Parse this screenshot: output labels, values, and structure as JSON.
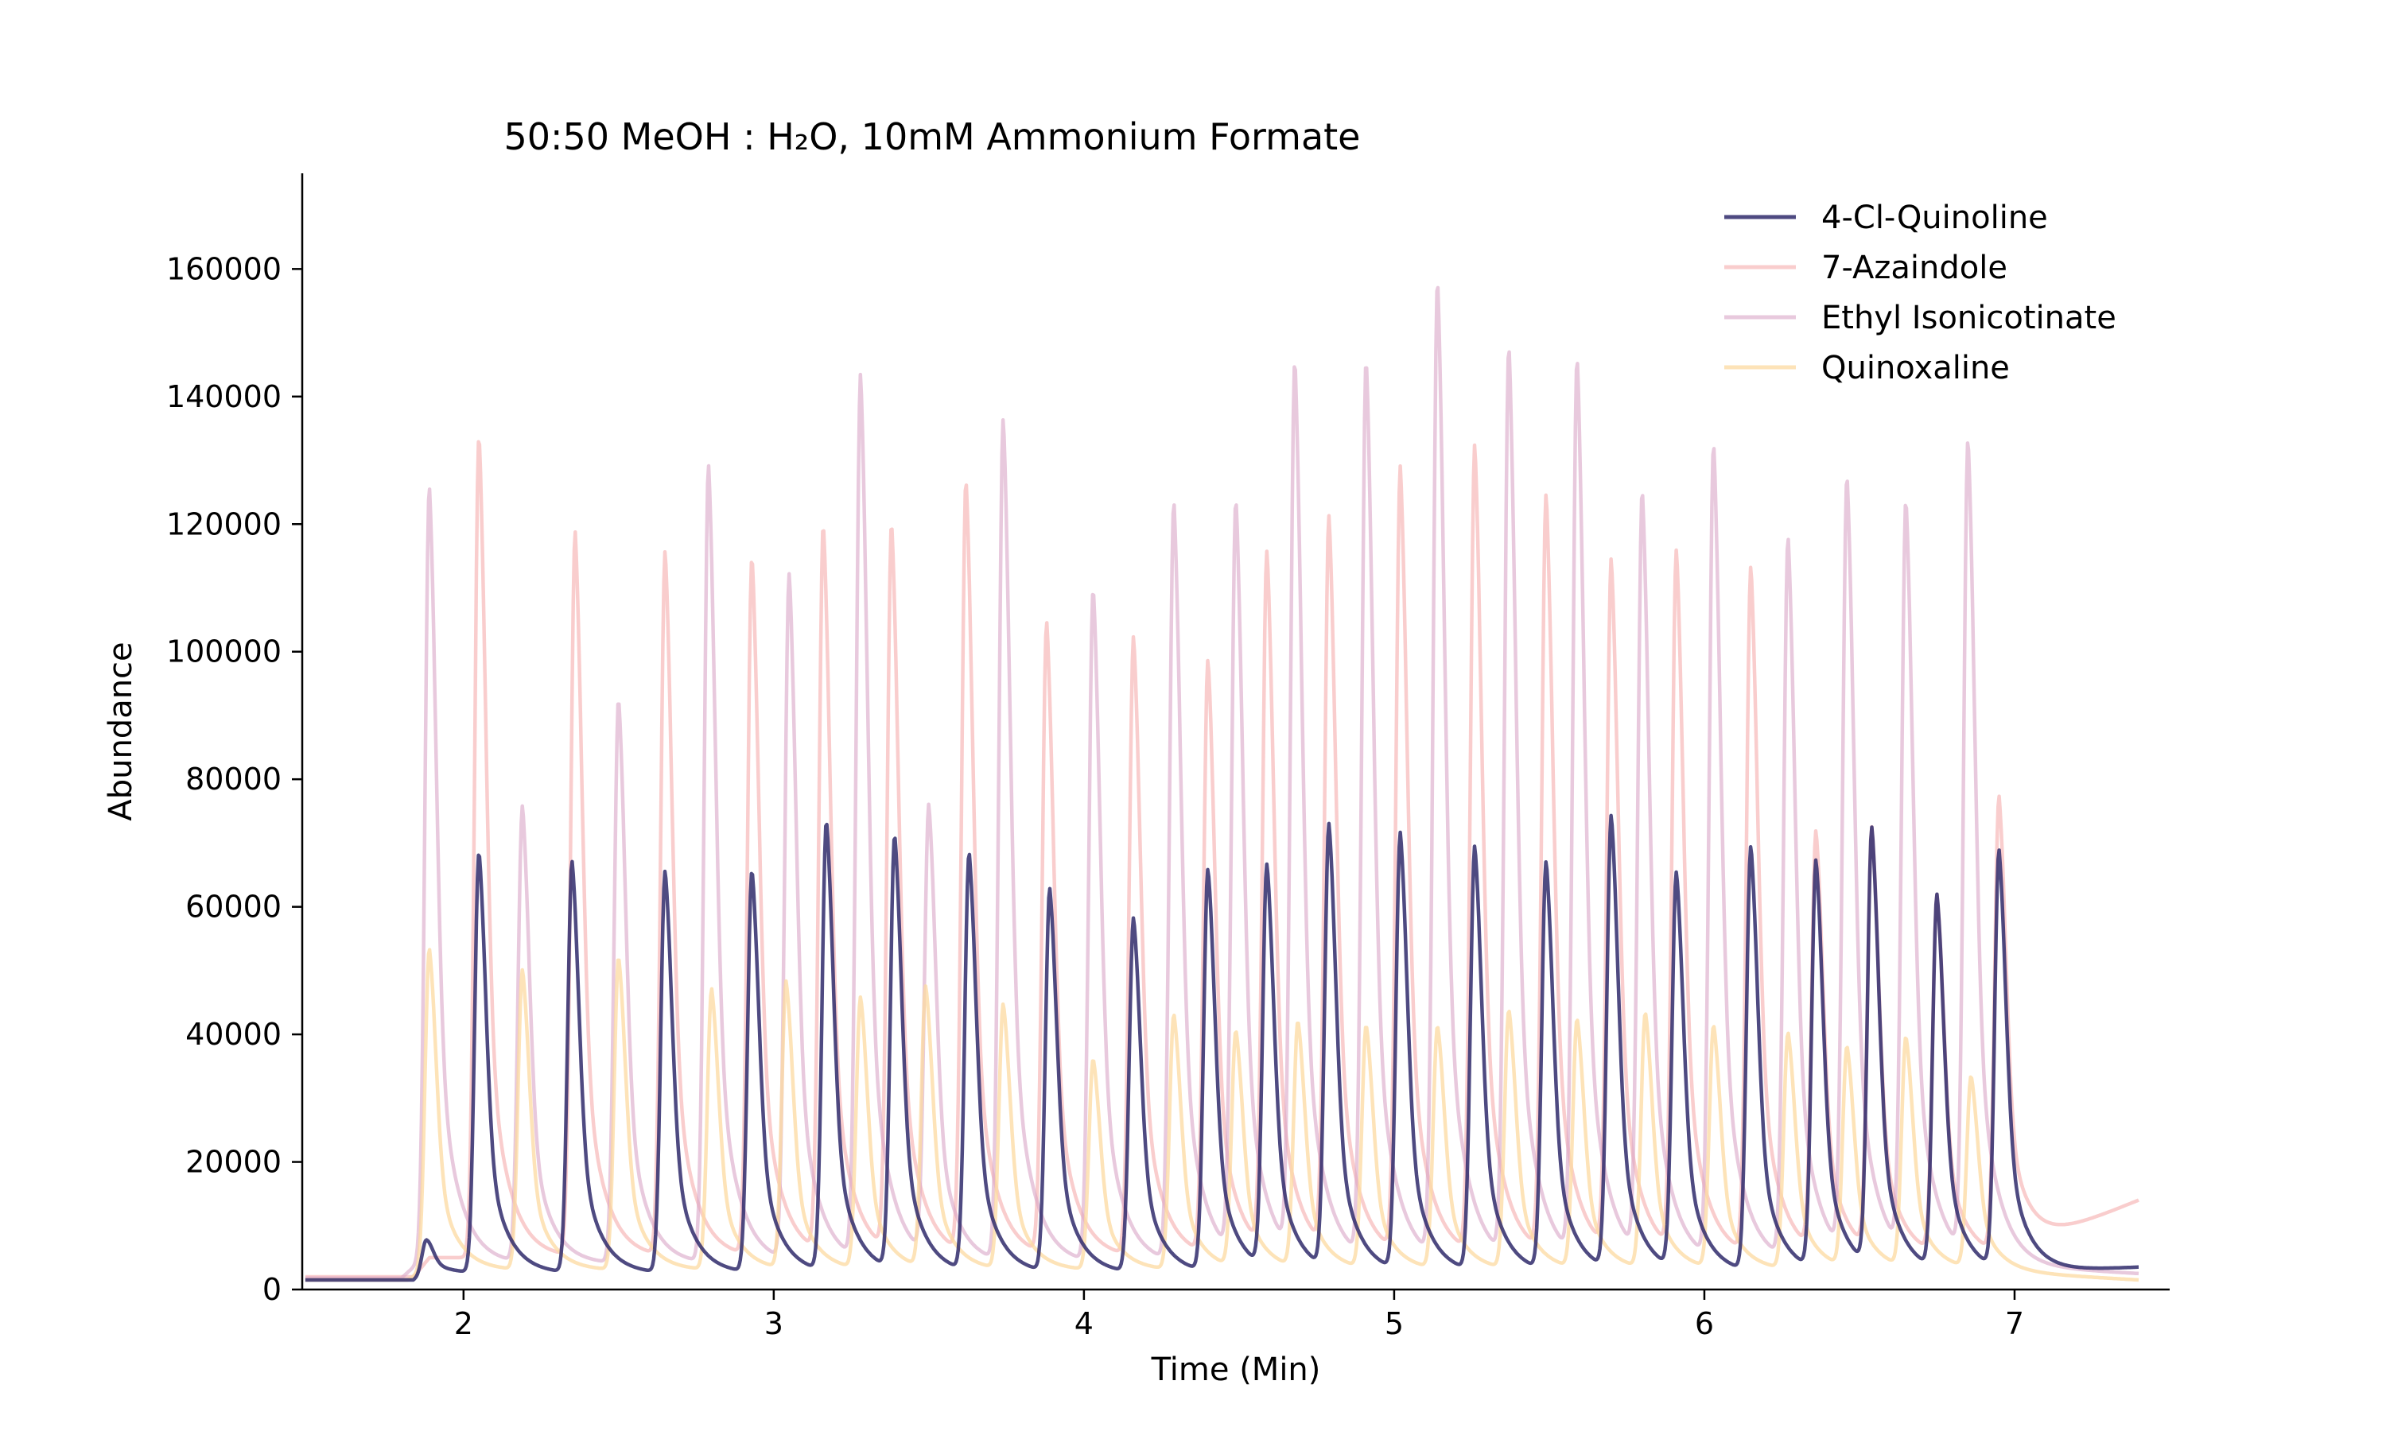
{
  "chart_data": {
    "type": "line",
    "title": "50:50 MeOH : H₂O, 10mM Ammonium Formate",
    "xlabel": "Time (Min)",
    "ylabel": "Abundance",
    "xlim": [
      1.48,
      7.5
    ],
    "ylim": [
      0,
      175000
    ],
    "xticks": [
      2,
      3,
      4,
      5,
      6,
      7
    ],
    "yticks": [
      0,
      20000,
      40000,
      60000,
      80000,
      100000,
      120000,
      140000,
      160000
    ],
    "grid": false,
    "legend_position": "top-right",
    "series": [
      {
        "name": "4-Cl-Quinoline",
        "color": "#2f2a6b",
        "opacity": 0.85,
        "base": 1500,
        "baseline": 2500,
        "start": 1.84,
        "end": 7.4,
        "end_value": 3500,
        "peaks": [
          [
            1.88,
            5500
          ],
          [
            2.05,
            66000
          ],
          [
            2.35,
            64500
          ],
          [
            2.65,
            63000
          ],
          [
            2.93,
            63000
          ],
          [
            3.17,
            70500
          ],
          [
            3.39,
            68000
          ],
          [
            3.63,
            65500
          ],
          [
            3.89,
            60000
          ],
          [
            4.16,
            55500
          ],
          [
            4.4,
            63000
          ],
          [
            4.59,
            63000
          ],
          [
            4.79,
            69500
          ],
          [
            5.02,
            68500
          ],
          [
            5.26,
            66500
          ],
          [
            5.49,
            64000
          ],
          [
            5.7,
            71000
          ],
          [
            5.91,
            62000
          ],
          [
            6.15,
            66500
          ],
          [
            6.36,
            64000
          ],
          [
            6.54,
            68500
          ],
          [
            6.75,
            58500
          ],
          [
            6.95,
            65500
          ]
        ]
      },
      {
        "name": "7-Azaindole",
        "color": "#f7b8b8",
        "opacity": 0.7,
        "base": 2000,
        "baseline": 5000,
        "start": 1.84,
        "end": 7.4,
        "end_value": 14000,
        "peaks": [
          [
            2.05,
            129000
          ],
          [
            2.36,
            113500
          ],
          [
            2.65,
            110500
          ],
          [
            2.93,
            109500
          ],
          [
            3.16,
            114000
          ],
          [
            3.38,
            114000
          ],
          [
            3.62,
            121000
          ],
          [
            3.88,
            99000
          ],
          [
            4.16,
            97000
          ],
          [
            4.4,
            93000
          ],
          [
            4.59,
            109000
          ],
          [
            4.79,
            114500
          ],
          [
            5.02,
            123000
          ],
          [
            5.26,
            126500
          ],
          [
            5.49,
            118500
          ],
          [
            5.7,
            108000
          ],
          [
            5.91,
            109500
          ],
          [
            6.15,
            107500
          ],
          [
            6.36,
            65500
          ],
          [
            6.54,
            66000
          ],
          [
            6.75,
            56000
          ],
          [
            6.95,
            71500
          ]
        ]
      },
      {
        "name": "Ethyl Isonicotinate",
        "color": "#d9a5c6",
        "opacity": 0.6,
        "base": 1800,
        "baseline": 4000,
        "start": 1.8,
        "end": 7.4,
        "end_value": 2500,
        "peaks": [
          [
            1.89,
            122000
          ],
          [
            2.19,
            71500
          ],
          [
            2.5,
            88500
          ],
          [
            2.79,
            125000
          ],
          [
            3.05,
            107500
          ],
          [
            3.28,
            138500
          ],
          [
            3.5,
            70500
          ],
          [
            3.74,
            132000
          ],
          [
            4.03,
            105500
          ],
          [
            4.29,
            119000
          ],
          [
            4.49,
            118000
          ],
          [
            4.68,
            139500
          ],
          [
            4.91,
            140500
          ],
          [
            5.14,
            153000
          ],
          [
            5.37,
            142500
          ],
          [
            5.59,
            140500
          ],
          [
            5.8,
            119500
          ],
          [
            6.03,
            127500
          ],
          [
            6.27,
            113000
          ],
          [
            6.46,
            121500
          ],
          [
            6.65,
            117500
          ],
          [
            6.85,
            127500
          ]
        ]
      },
      {
        "name": "Quinoxaline",
        "color": "#fcd9a0",
        "opacity": 0.75,
        "base": 1500,
        "baseline": 3000,
        "start": 1.82,
        "end": 7.4,
        "end_value": 1500,
        "peaks": [
          [
            1.89,
            50500
          ],
          [
            2.19,
            47000
          ],
          [
            2.5,
            49000
          ],
          [
            2.8,
            44000
          ],
          [
            3.04,
            45000
          ],
          [
            3.28,
            42500
          ],
          [
            3.49,
            44000
          ],
          [
            3.74,
            41500
          ],
          [
            4.03,
            33000
          ],
          [
            4.29,
            40000
          ],
          [
            4.49,
            37000
          ],
          [
            4.69,
            38500
          ],
          [
            4.91,
            38000
          ],
          [
            5.14,
            38000
          ],
          [
            5.37,
            40500
          ],
          [
            5.59,
            39000
          ],
          [
            5.81,
            40000
          ],
          [
            6.03,
            38000
          ],
          [
            6.27,
            37000
          ],
          [
            6.46,
            34500
          ],
          [
            6.65,
            36000
          ],
          [
            6.86,
            30000
          ]
        ]
      }
    ]
  }
}
